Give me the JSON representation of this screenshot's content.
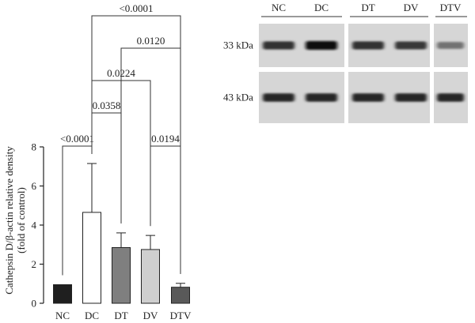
{
  "chart_data": {
    "type": "bar",
    "categories": [
      "NC",
      "DC",
      "DT",
      "DV",
      "DTV"
    ],
    "values": [
      0.95,
      4.65,
      2.85,
      2.75,
      0.82
    ],
    "errors": [
      0.0,
      2.5,
      0.75,
      0.72,
      0.2
    ],
    "bar_colors": [
      "#1f1f1f",
      "#ffffff",
      "#7f7f7f",
      "#cfcfcf",
      "#595959"
    ],
    "ylabel_line1": "Cathepsin D/β-actin relative density",
    "ylabel_line2": "(fold of control)",
    "ylim": [
      0,
      8
    ],
    "yticks": [
      "0",
      "2",
      "4",
      "6",
      "8"
    ],
    "comparisons": [
      {
        "from": "NC",
        "to": "DC",
        "label": "<0.0001"
      },
      {
        "from": "DC",
        "to": "DT",
        "label": "0.0358"
      },
      {
        "from": "DC",
        "to": "DV",
        "label": "0.0224"
      },
      {
        "from": "DT",
        "to": "DTV",
        "label": "0.0120"
      },
      {
        "from": "DC",
        "to": "DTV",
        "label": "<0.0001"
      },
      {
        "from": "DV",
        "to": "DTV",
        "label": "0.0194"
      }
    ]
  },
  "blot": {
    "lanes": [
      "NC",
      "DC",
      "DT",
      "DV",
      "DTV"
    ],
    "rows": [
      {
        "label": "33 kDa",
        "intensities": [
          0.85,
          1.0,
          0.85,
          0.82,
          0.55
        ]
      },
      {
        "label": "43 kDa",
        "intensities": [
          0.9,
          0.9,
          0.9,
          0.9,
          0.9
        ]
      }
    ]
  }
}
